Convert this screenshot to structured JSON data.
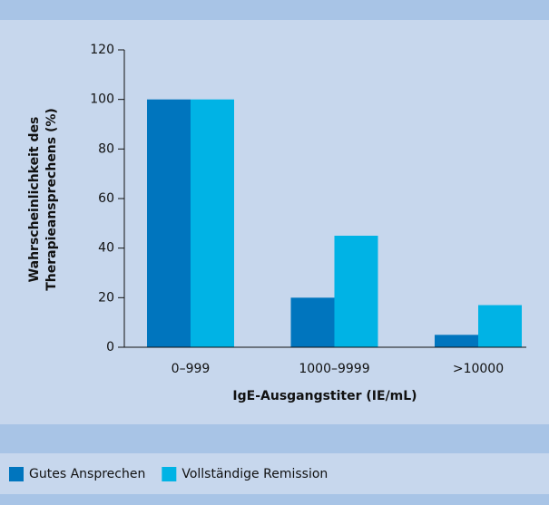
{
  "chart_data": {
    "type": "bar",
    "ylabel": [
      "Wahrscheinlichkeit des",
      "Therapieansprechens (%)"
    ],
    "xlabel": "IgE-Ausgangstiter (IE/mL)",
    "categories": [
      "0–999",
      "1000–9999",
      ">10000"
    ],
    "series": [
      {
        "name": "Gutes Ansprechen",
        "color": "#0075be",
        "values": [
          100,
          20,
          5
        ]
      },
      {
        "name": "Vollständige Remission",
        "color": "#00b3e5",
        "values": [
          100,
          45,
          17
        ]
      }
    ],
    "ylim": [
      0,
      120
    ],
    "yticks": [
      0,
      20,
      40,
      60,
      80,
      100,
      120
    ],
    "legend": "bottom-left"
  }
}
